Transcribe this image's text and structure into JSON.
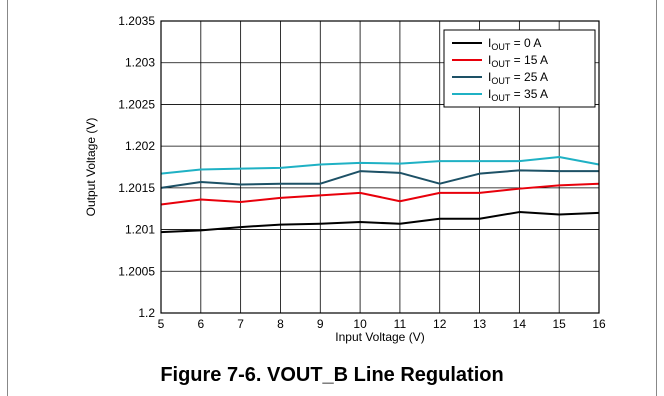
{
  "figure": {
    "caption": "Figure 7-6. VOUT_B Line Regulation"
  },
  "chart_data": {
    "type": "line",
    "xlabel": "Input Voltage (V)",
    "ylabel": "Output Voltage (V)",
    "xlim": [
      5,
      16
    ],
    "ylim": [
      1.2,
      1.2035
    ],
    "x_ticks": [
      5,
      6,
      7,
      8,
      9,
      10,
      11,
      12,
      13,
      14,
      15,
      16
    ],
    "y_ticks": [
      1.2,
      1.2005,
      1.201,
      1.2015,
      1.202,
      1.2025,
      1.203,
      1.2035
    ],
    "y_tick_labels": [
      "1.2",
      "1.2005",
      "1.201",
      "1.2015",
      "1.202",
      "1.2025",
      "1.203",
      "1.2035"
    ],
    "grid": true,
    "legend_position": "top-right",
    "x": [
      5,
      6,
      7,
      8,
      9,
      10,
      11,
      12,
      13,
      14,
      15,
      16
    ],
    "series": [
      {
        "name_main": "I",
        "name_sub": "OUT",
        "name_rest": " = 0 A",
        "color": "#000000",
        "values": [
          1.20097,
          1.20099,
          1.20103,
          1.20106,
          1.20107,
          1.20109,
          1.20107,
          1.20113,
          1.20113,
          1.20121,
          1.20118,
          1.2012
        ]
      },
      {
        "name_main": "I",
        "name_sub": "OUT",
        "name_rest": " = 15 A",
        "color": "#e8000b",
        "values": [
          1.2013,
          1.20136,
          1.20133,
          1.20138,
          1.20141,
          1.20144,
          1.20134,
          1.20144,
          1.20144,
          1.20149,
          1.20153,
          1.20155
        ]
      },
      {
        "name_main": "I",
        "name_sub": "OUT",
        "name_rest": " = 25 A",
        "color": "#1d5166",
        "values": [
          1.2015,
          1.20157,
          1.20154,
          1.20155,
          1.20155,
          1.2017,
          1.20168,
          1.20155,
          1.20167,
          1.20171,
          1.2017,
          1.2017
        ]
      },
      {
        "name_main": "I",
        "name_sub": "OUT",
        "name_rest": " = 35 A",
        "color": "#1fb1c4",
        "values": [
          1.20167,
          1.20172,
          1.20173,
          1.20174,
          1.20178,
          1.2018,
          1.20179,
          1.20182,
          1.20182,
          1.20182,
          1.20187,
          1.20178
        ]
      }
    ]
  }
}
